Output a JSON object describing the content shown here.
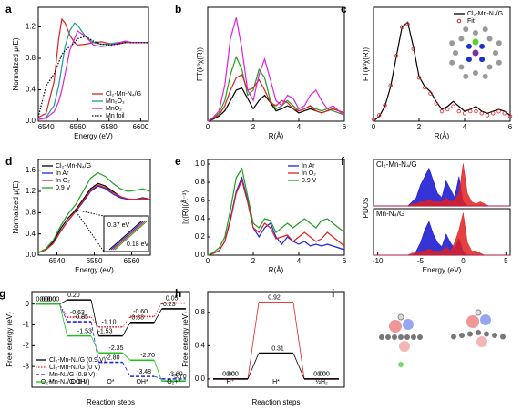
{
  "chart_data": [
    {
      "type": "line",
      "panel": "a",
      "xlabel": "Energy (eV)",
      "ylabel": "Normalized μ(E)",
      "x": [
        6535,
        6540,
        6545,
        6548,
        6550,
        6552,
        6555,
        6558,
        6560,
        6565,
        6570,
        6575,
        6580,
        6585,
        6590,
        6595,
        6600,
        6605
      ],
      "xlim": [
        6535,
        6605
      ],
      "xticks": [
        6540,
        6560,
        6580,
        6600
      ],
      "ylim": [
        0,
        1.45
      ],
      "yticks": [
        {
          "value": 0,
          "label": "0.0"
        },
        0.4,
        0.8,
        1.2
      ],
      "legend": "lower right",
      "series": [
        {
          "name": "Cl₂-Mn-N₄/G",
          "color": "#e02020",
          "values": [
            0.05,
            0.1,
            0.5,
            1.05,
            1.3,
            1.25,
            1.1,
            1.0,
            0.97,
            0.98,
            1.0,
            1.01,
            0.99,
            0.98,
            1.0,
            1.0,
            1.0,
            1.0
          ]
        },
        {
          "name": "Mn₂O₃",
          "color": "#1a9a9a",
          "values": [
            0.02,
            0.05,
            0.2,
            0.45,
            0.7,
            0.95,
            1.15,
            1.25,
            1.22,
            1.08,
            1.0,
            0.98,
            0.98,
            1.0,
            1.01,
            1.0,
            1.0,
            1.0
          ]
        },
        {
          "name": "MnO₂",
          "color": "#e020e0",
          "values": [
            0.02,
            0.04,
            0.12,
            0.25,
            0.4,
            0.6,
            0.9,
            1.05,
            1.15,
            1.08,
            0.97,
            0.95,
            0.96,
            0.99,
            1.02,
            1.0,
            1.0,
            1.0
          ]
        },
        {
          "name": "Mn foil",
          "color": "#000000",
          "linestyle": "dotted",
          "values": [
            0.05,
            0.45,
            0.6,
            0.75,
            0.85,
            0.9,
            0.95,
            1.0,
            1.05,
            1.08,
            1.02,
            0.98,
            0.97,
            0.98,
            1.0,
            1.0,
            1.0,
            1.0
          ]
        }
      ]
    },
    {
      "type": "line",
      "panel": "b",
      "xlabel": "R(Å)",
      "ylabel": "FT(k³χ(R))",
      "x": [
        0,
        0.25,
        0.5,
        0.75,
        1,
        1.25,
        1.5,
        1.75,
        2,
        2.25,
        2.5,
        2.75,
        3,
        3.25,
        3.5,
        3.75,
        4,
        4.25,
        4.5,
        4.75,
        5,
        5.25,
        5.5,
        5.75,
        6
      ],
      "xlim": [
        0,
        6
      ],
      "xticks": [
        0,
        2,
        4,
        6
      ],
      "ylim": [
        0,
        1.1
      ],
      "series": [
        {
          "color": "#000000",
          "values": [
            0,
            0.02,
            0.05,
            0.1,
            0.2,
            0.3,
            0.32,
            0.22,
            0.12,
            0.2,
            0.25,
            0.18,
            0.1,
            0.12,
            0.15,
            0.12,
            0.08,
            0.1,
            0.12,
            0.1,
            0.08,
            0.1,
            0.12,
            0.1,
            0.08
          ]
        },
        {
          "color": "#20a020",
          "values": [
            0,
            0.03,
            0.08,
            0.2,
            0.45,
            0.62,
            0.5,
            0.25,
            0.3,
            0.5,
            0.42,
            0.2,
            0.12,
            0.15,
            0.2,
            0.15,
            0.1,
            0.12,
            0.15,
            0.12,
            0.1,
            0.12,
            0.1,
            0.08,
            0.06
          ]
        },
        {
          "color": "#e02020",
          "values": [
            0,
            0.03,
            0.06,
            0.15,
            0.3,
            0.42,
            0.45,
            0.3,
            0.32,
            0.4,
            0.3,
            0.18,
            0.15,
            0.2,
            0.18,
            0.12,
            0.1,
            0.12,
            0.15,
            0.1,
            0.08,
            0.1,
            0.12,
            0.1,
            0.08
          ]
        },
        {
          "color": "#e020e0",
          "values": [
            0,
            0.04,
            0.1,
            0.35,
            0.8,
            1.0,
            0.7,
            0.3,
            0.2,
            0.45,
            0.6,
            0.4,
            0.2,
            0.15,
            0.25,
            0.22,
            0.12,
            0.15,
            0.25,
            0.3,
            0.2,
            0.12,
            0.15,
            0.1,
            0.05
          ]
        }
      ]
    },
    {
      "type": "line",
      "panel": "c",
      "xlabel": "R(Å)",
      "ylabel": "FT(k³χ(R))",
      "x": [
        0,
        0.25,
        0.5,
        0.75,
        1,
        1.25,
        1.5,
        1.75,
        2,
        2.25,
        2.5,
        2.75,
        3,
        3.25,
        3.5,
        3.75,
        4,
        4.25,
        4.5,
        4.75,
        5,
        5.25,
        5.5,
        5.75,
        6
      ],
      "xlim": [
        0,
        6
      ],
      "xticks": [
        0,
        2,
        4,
        6
      ],
      "ylim": [
        0,
        1.15
      ],
      "legend": "upper right",
      "series": [
        {
          "name": "Cl₂-Mn-N₄/G",
          "color": "#000000",
          "values": [
            0,
            0.05,
            0.15,
            0.35,
            0.65,
            0.95,
            1.0,
            0.75,
            0.45,
            0.35,
            0.3,
            0.2,
            0.12,
            0.15,
            0.2,
            0.15,
            0.1,
            0.12,
            0.15,
            0.1,
            0.08,
            0.1,
            0.12,
            0.1,
            0.06
          ]
        },
        {
          "name": "Fit",
          "color": "#e02020",
          "marker": "o",
          "values": [
            0.02,
            0.06,
            0.16,
            0.36,
            0.66,
            0.95,
            0.98,
            0.73,
            0.44,
            0.34,
            0.28,
            0.18,
            0.1,
            0.12,
            0.15,
            0.1,
            0.08,
            0.1,
            0.1,
            0.08,
            0.06,
            0.08,
            0.1,
            0.08,
            0.05
          ]
        }
      ]
    },
    {
      "type": "line",
      "panel": "d",
      "xlabel": "Energy (eV)",
      "ylabel": "Normalized μ(E)",
      "x": [
        6535,
        6537,
        6539,
        6541,
        6543,
        6545,
        6547,
        6549,
        6551,
        6553,
        6555,
        6557,
        6559,
        6561,
        6563,
        6565
      ],
      "xlim": [
        6535,
        6565
      ],
      "xticks": [
        6540,
        6550,
        6560
      ],
      "ylim": [
        0,
        1.8
      ],
      "yticks": [
        {
          "value": 0,
          "label": "0.0"
        },
        0.4,
        0.8,
        1.2,
        1.6
      ],
      "legend": "upper left",
      "annotations": [
        "0.37 eV",
        "0.18 eV"
      ],
      "series": [
        {
          "name": "Cl₂-Mn-N₄/G",
          "color": "#000000",
          "values": [
            0.05,
            0.1,
            0.25,
            0.5,
            0.7,
            0.85,
            1.05,
            1.25,
            1.35,
            1.3,
            1.2,
            1.1,
            1.05,
            1.05,
            1.08,
            1.05
          ]
        },
        {
          "name": "In Ar",
          "color": "#2020e0",
          "values": [
            0.05,
            0.1,
            0.22,
            0.45,
            0.65,
            0.82,
            1.0,
            1.2,
            1.3,
            1.25,
            1.15,
            1.08,
            1.05,
            1.05,
            1.06,
            1.05
          ]
        },
        {
          "name": "In O₂",
          "color": "#e02020",
          "values": [
            0.05,
            0.1,
            0.22,
            0.45,
            0.65,
            0.83,
            1.02,
            1.22,
            1.32,
            1.27,
            1.18,
            1.1,
            1.06,
            1.05,
            1.07,
            1.05
          ]
        },
        {
          "name": "0.9 V",
          "color": "#20a020",
          "values": [
            0.05,
            0.12,
            0.28,
            0.55,
            0.78,
            0.95,
            1.2,
            1.45,
            1.55,
            1.48,
            1.35,
            1.25,
            1.2,
            1.22,
            1.25,
            1.2
          ]
        }
      ]
    },
    {
      "type": "line",
      "panel": "e",
      "xlabel": "R(Å)",
      "ylabel": "|χ(R)|(Å⁻³)",
      "x": [
        0,
        0.25,
        0.5,
        0.75,
        1,
        1.25,
        1.5,
        1.75,
        2,
        2.25,
        2.5,
        2.75,
        3,
        3.25,
        3.5,
        3.75,
        4,
        4.25,
        4.5,
        4.75,
        5,
        5.25,
        5.5,
        5.75,
        6
      ],
      "xlim": [
        0,
        6
      ],
      "xticks": [
        0,
        2,
        4,
        6
      ],
      "ylim": [
        0,
        1.05
      ],
      "yticks": [
        {
          "value": 0,
          "label": "0.0"
        },
        0.2,
        0.4,
        0.6,
        0.8,
        {
          "value": 1,
          "label": "1.0"
        }
      ],
      "legend": "upper right",
      "series": [
        {
          "name": "In Ar",
          "color": "#2020e0",
          "values": [
            0,
            0.02,
            0.05,
            0.15,
            0.4,
            0.7,
            0.85,
            0.6,
            0.3,
            0.2,
            0.3,
            0.35,
            0.2,
            0.12,
            0.2,
            0.15,
            0.12,
            0.15,
            0.1,
            0.12,
            0.1,
            0.12,
            0.1,
            0.08,
            0.06
          ]
        },
        {
          "name": "In O₂",
          "color": "#e02020",
          "values": [
            0,
            0.02,
            0.05,
            0.15,
            0.38,
            0.68,
            0.82,
            0.58,
            0.3,
            0.25,
            0.35,
            0.3,
            0.18,
            0.2,
            0.22,
            0.15,
            0.2,
            0.25,
            0.2,
            0.15,
            0.18,
            0.25,
            0.2,
            0.15,
            0.1
          ]
        },
        {
          "name": "0.9 V",
          "color": "#20a020",
          "values": [
            0,
            0.03,
            0.08,
            0.2,
            0.5,
            0.85,
            0.95,
            0.65,
            0.35,
            0.3,
            0.4,
            0.38,
            0.25,
            0.3,
            0.35,
            0.3,
            0.35,
            0.4,
            0.35,
            0.3,
            0.38,
            0.4,
            0.35,
            0.3,
            0.25
          ]
        }
      ]
    },
    {
      "type": "area",
      "panel": "f",
      "title": "Cl₂-Mn-N₄/G",
      "ylabel": "PDOS",
      "x": [
        -10.5,
        -10,
        -9.5,
        -9,
        -8.5,
        -8,
        -7.5,
        -7,
        -6.5,
        -6,
        -5.5,
        -5,
        -4.5,
        -4,
        -3.5,
        -3,
        -2.5,
        -2,
        -1.5,
        -1,
        -0.5,
        0,
        0.5,
        1,
        1.5,
        2,
        2.5,
        3,
        3.5,
        4,
        4.5,
        5,
        5.5
      ],
      "xlim": [
        -10.5,
        5.5
      ],
      "ylim": [
        0,
        1.1
      ],
      "series": [
        {
          "color": "#1010d0",
          "values": [
            0,
            0,
            0,
            0,
            0,
            0,
            0,
            0,
            0,
            0.1,
            0.2,
            0.5,
            0.7,
            0.9,
            0.6,
            0.3,
            0.2,
            0.6,
            0.4,
            0.2,
            0.7,
            0.1,
            0,
            0,
            0,
            0,
            0,
            0,
            0,
            0,
            0,
            0,
            0
          ]
        },
        {
          "color": "#e02020",
          "values": [
            0,
            0,
            0,
            0,
            0,
            0,
            0,
            0,
            0,
            0.05,
            0.05,
            0.1,
            0.1,
            0.15,
            0.1,
            0.1,
            0.1,
            0.2,
            0.1,
            0.15,
            0.3,
            1.0,
            0.3,
            0.1,
            0.05,
            0.1,
            0.05,
            0,
            0,
            0,
            0,
            0,
            0
          ]
        }
      ]
    },
    {
      "type": "area",
      "title": "Mn-N₄/G",
      "xlabel": "Energy (eV)",
      "x": [
        -10.5,
        -10,
        -9.5,
        -9,
        -8.5,
        -8,
        -7.5,
        -7,
        -6.5,
        -6,
        -5.5,
        -5,
        -4.5,
        -4,
        -3.5,
        -3,
        -2.5,
        -2,
        -1.5,
        -1,
        -0.5,
        0,
        0.5,
        1,
        1.5,
        2,
        2.5,
        3,
        3.5,
        4,
        4.5,
        5,
        5.5
      ],
      "xlim": [
        -10.5,
        5.5
      ],
      "xticks": [
        -10,
        -5,
        0,
        5
      ],
      "ylim": [
        0,
        1.1
      ],
      "series": [
        {
          "color": "#1010d0",
          "values": [
            0,
            0,
            0,
            0,
            0,
            0,
            0,
            0,
            0,
            0,
            0.1,
            0.3,
            0.6,
            0.8,
            0.5,
            0.3,
            0.2,
            0.5,
            0.3,
            0.15,
            0.4,
            0.1,
            0,
            0,
            0,
            0,
            0,
            0,
            0,
            0,
            0,
            0,
            0
          ]
        },
        {
          "color": "#e02020",
          "values": [
            0,
            0,
            0,
            0,
            0,
            0,
            0,
            0,
            0,
            0.05,
            0.05,
            0.1,
            0.1,
            0.15,
            0.1,
            0.1,
            0.1,
            0.2,
            0.1,
            0.3,
            0.6,
            1.0,
            0.3,
            0.1,
            0.1,
            0.05,
            0,
            0,
            0,
            0,
            0,
            0,
            0
          ]
        }
      ]
    },
    {
      "type": "step",
      "panel": "g",
      "xlabel": "Reaction steps",
      "ylabel": "Free energy (eV)",
      "ylim": [
        -4,
        0.6
      ],
      "yticks": [
        0,
        -1,
        -2,
        -3
      ],
      "legend": "lower left",
      "step_labels": [
        "O₂+*",
        "OOH*",
        "O*",
        "OH*",
        "O₂+*"
      ],
      "series": [
        {
          "name": "Cl₂-Mn-N₄/G (0.9 V)",
          "color": "#000000",
          "values": [
            0,
            0.2,
            -1.53,
            -0.88,
            -0.23
          ],
          "value_labels": [
            "0.00",
            "0.20",
            "-1.53",
            "-0.88",
            "-0.23"
          ]
        },
        {
          "name": "Cl₂-Mn-N₄/G (0 V)",
          "color": "#e02020",
          "linestyle": "dotted",
          "values": [
            0,
            -0.63,
            -1.1,
            -0.6,
            0.05
          ],
          "value_labels": [
            "0.00",
            "-0.63",
            "-1.10",
            "-0.60",
            "0.05"
          ]
        },
        {
          "name": "Mn-N₄/G (0.9 V)",
          "color": "#2020e0",
          "linestyle": "dashed",
          "values": [
            0,
            -0.85,
            -2.8,
            -3.48,
            -3.6
          ],
          "value_labels": [
            "0.00",
            "-0.85",
            "-2.80",
            "-3.48",
            "-3.60"
          ]
        },
        {
          "name": "Mn-N₄/G (0 V)",
          "color": "#20c020",
          "values": [
            0,
            -1.53,
            -2.35,
            -2.7,
            -3.7
          ],
          "value_labels": [
            "0.00",
            "-1.53",
            "-2.35",
            "-2.70",
            "-3.70"
          ]
        }
      ]
    },
    {
      "type": "step",
      "panel": "h",
      "xlabel": "Reaction steps",
      "ylabel": "Free energy (eV)",
      "ylim": [
        -0.1,
        1.05
      ],
      "yticks": [
        {
          "value": 0,
          "label": "0.0"
        },
        0.4,
        0.8
      ],
      "step_labels": [
        "H⁺",
        "H*",
        "½H₂"
      ],
      "series": [
        {
          "color": "#e02020",
          "values": [
            0,
            0.92,
            0
          ],
          "value_labels": [
            "0.00",
            "0.92",
            "0.00"
          ]
        },
        {
          "color": "#000000",
          "values": [
            0,
            0.31,
            0
          ],
          "value_labels": [
            "0.00",
            "0.31",
            "0.00"
          ]
        }
      ]
    },
    {
      "type": "image",
      "panel": "i"
    }
  ]
}
